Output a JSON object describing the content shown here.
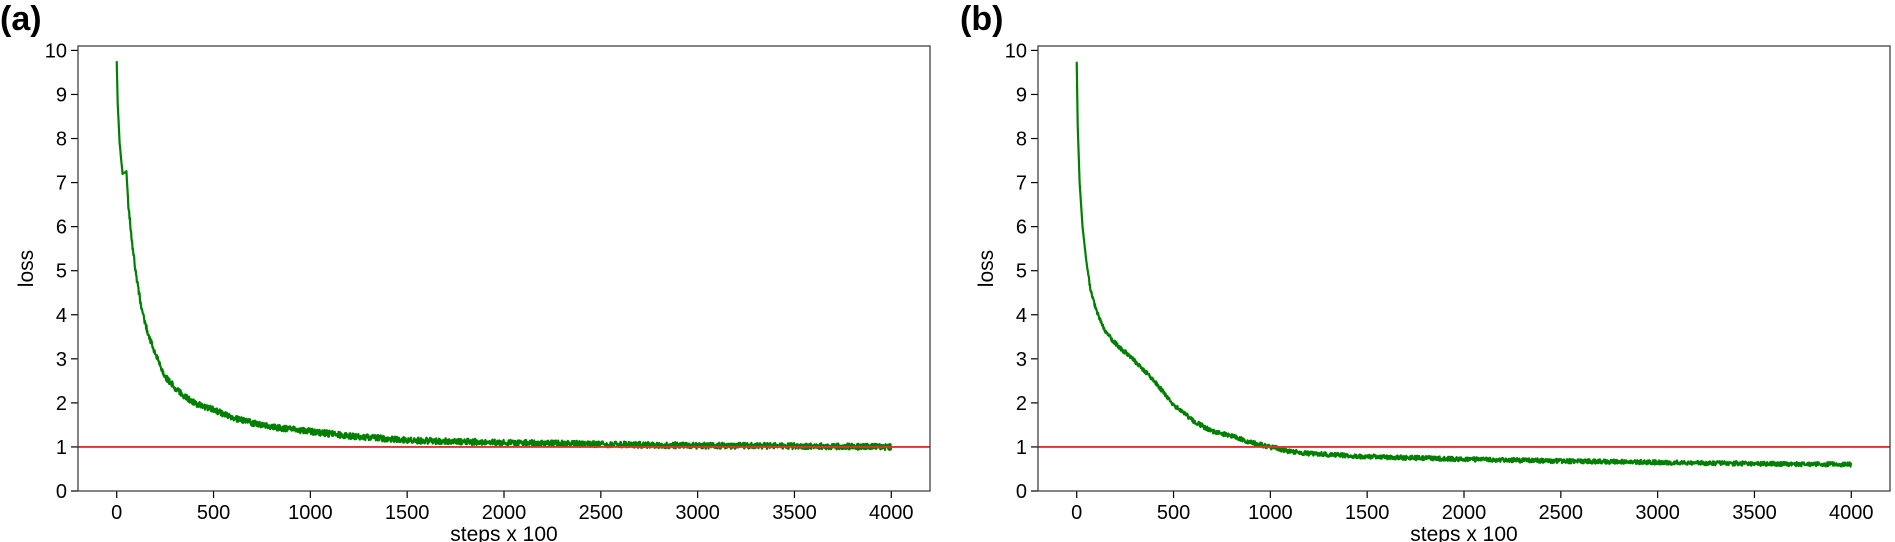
{
  "chart_data": [
    {
      "panel_label": "(a)",
      "type": "line",
      "xlabel": "steps x 100",
      "ylabel": "loss",
      "xlim": [
        -200,
        4200
      ],
      "ylim": [
        0,
        10.1
      ],
      "xticks": [
        0,
        500,
        1000,
        1500,
        2000,
        2500,
        3000,
        3500,
        4000
      ],
      "yticks": [
        0,
        1,
        2,
        3,
        4,
        5,
        6,
        7,
        8,
        9,
        10
      ],
      "grid": false,
      "reference_line": {
        "y": 1,
        "color": "#e03030"
      },
      "series": [
        {
          "color": "#008000",
          "x": [
            0,
            5,
            15,
            30,
            50,
            60,
            80,
            100,
            130,
            160,
            200,
            250,
            300,
            350,
            400,
            500,
            600,
            700,
            800,
            1000,
            1200,
            1500,
            2000,
            2500,
            3000,
            3500,
            4000
          ],
          "y": [
            9.75,
            8.8,
            7.9,
            7.2,
            7.25,
            6.5,
            5.6,
            4.9,
            4.1,
            3.6,
            3.1,
            2.6,
            2.35,
            2.15,
            2.0,
            1.85,
            1.65,
            1.55,
            1.45,
            1.35,
            1.25,
            1.15,
            1.1,
            1.06,
            1.03,
            1.02,
            1.0
          ],
          "noise": 0.07
        }
      ]
    },
    {
      "panel_label": "(b)",
      "type": "line",
      "xlabel": "steps x 100",
      "ylabel": "loss",
      "xlim": [
        -200,
        4200
      ],
      "ylim": [
        0,
        10.1
      ],
      "xticks": [
        0,
        500,
        1000,
        1500,
        2000,
        2500,
        3000,
        3500,
        4000
      ],
      "yticks": [
        0,
        1,
        2,
        3,
        4,
        5,
        6,
        7,
        8,
        9,
        10
      ],
      "grid": false,
      "reference_line": {
        "y": 1,
        "color": "#e03030"
      },
      "series": [
        {
          "color": "#008000",
          "x": [
            0,
            5,
            15,
            30,
            50,
            70,
            100,
            150,
            200,
            300,
            400,
            500,
            600,
            700,
            800,
            900,
            1000,
            1100,
            1200,
            1500,
            2000,
            2500,
            3000,
            3500,
            4000
          ],
          "y": [
            9.75,
            8.3,
            7.0,
            6.0,
            5.2,
            4.6,
            4.1,
            3.6,
            3.35,
            2.95,
            2.5,
            1.95,
            1.6,
            1.35,
            1.25,
            1.1,
            1.0,
            0.9,
            0.85,
            0.78,
            0.72,
            0.68,
            0.65,
            0.62,
            0.6
          ],
          "noise": 0.05
        }
      ]
    }
  ]
}
